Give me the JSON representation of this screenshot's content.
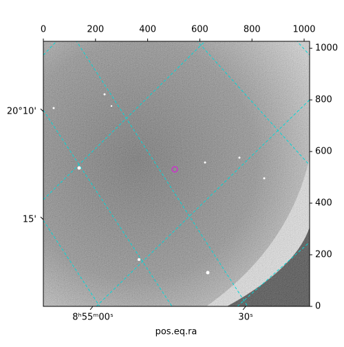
{
  "chart_data": {
    "type": "image",
    "xlabel": "pos.eq.ra",
    "xlim": [
      0,
      1021
    ],
    "ylim": [
      0,
      1027
    ],
    "xticks": [
      0,
      200,
      400,
      600,
      800,
      1000
    ],
    "yticks": [
      0,
      200,
      400,
      600,
      800,
      1000
    ],
    "ra_ticks": [
      {
        "value": 190,
        "label": "8ʰ55ᵐ00ˢ"
      },
      {
        "value": 776,
        "label": "30ˢ"
      }
    ],
    "dec_ticks": [
      {
        "value": 755,
        "label": "20°10'"
      },
      {
        "value": 336,
        "label": "15'"
      }
    ],
    "marker": {
      "x": 504,
      "y": 531,
      "color": "#cc33cc"
    },
    "grid_color": "#00d8d8"
  }
}
